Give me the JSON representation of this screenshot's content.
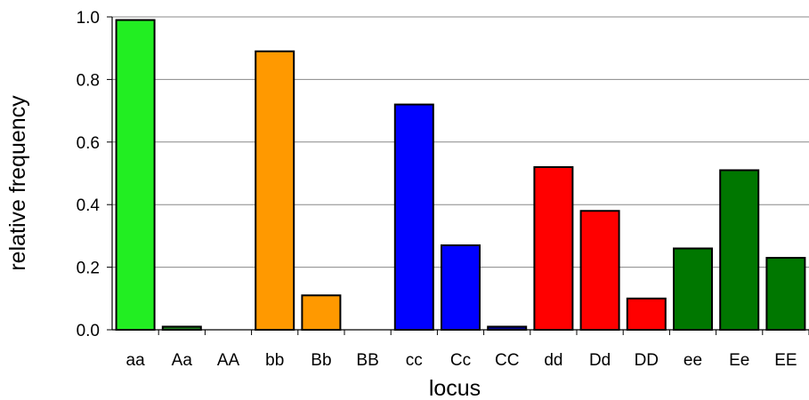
{
  "chart_data": {
    "type": "bar",
    "xlabel": "locus",
    "ylabel": "relative frequency",
    "ylim": [
      0,
      1.0
    ],
    "yticks": [
      0.0,
      0.2,
      0.4,
      0.6,
      0.8,
      1.0
    ],
    "ytick_labels": [
      "0.0",
      "0.2",
      "0.4",
      "0.6",
      "0.8",
      "1.0"
    ],
    "grid": "horizontal",
    "legend": "none",
    "categories": [
      "aa",
      "Aa",
      "AA",
      "bb",
      "Bb",
      "BB",
      "cc",
      "Cc",
      "CC",
      "dd",
      "Dd",
      "DD",
      "ee",
      "Ee",
      "EE"
    ],
    "values": [
      0.99,
      0.01,
      0.0,
      0.89,
      0.11,
      0.0,
      0.72,
      0.27,
      0.01,
      0.52,
      0.38,
      0.1,
      0.26,
      0.51,
      0.23
    ],
    "colors": [
      "#22ee22",
      "#1a7a1a",
      "#1a7a1a",
      "#ff9900",
      "#ff9900",
      "#ff9900",
      "#0000ff",
      "#0000ff",
      "#00008b",
      "#ff0000",
      "#ff0000",
      "#ff0000",
      "#007700",
      "#007700",
      "#007700"
    ]
  }
}
